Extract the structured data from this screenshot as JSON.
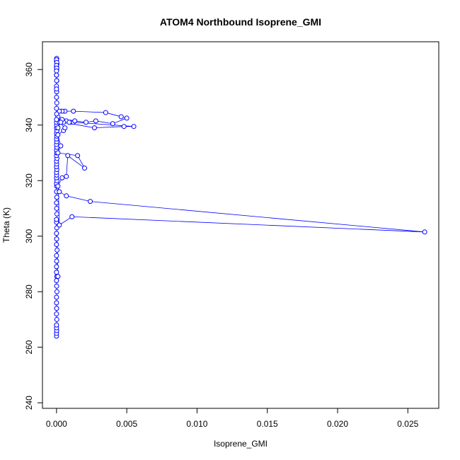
{
  "chart_data": {
    "type": "scatter",
    "title": "ATOM4 Northbound Isoprene_GMI",
    "xlabel": "Isoprene_GMI",
    "ylabel": "Theta (K)",
    "xlim": [
      -0.001,
      0.0272
    ],
    "ylim": [
      238,
      370
    ],
    "x_ticks": [
      0.0,
      0.005,
      0.01,
      0.015,
      0.02,
      0.025
    ],
    "x_tick_labels": [
      "0.000",
      "0.005",
      "0.010",
      "0.015",
      "0.020",
      "0.025"
    ],
    "y_ticks": [
      240,
      260,
      280,
      300,
      320,
      340,
      360
    ],
    "y_tick_labels": [
      "240",
      "260",
      "280",
      "300",
      "320",
      "340",
      "360"
    ],
    "grid": false,
    "legend": "none",
    "marker": "open-circle",
    "connected": true,
    "colors": {
      "series": "#0000ff",
      "axis": "#000000"
    },
    "series": [
      {
        "x": [
          0.0,
          0.0,
          1e-05,
          0.0,
          0.0,
          2e-05,
          0.0,
          1e-05,
          0.0,
          0.0,
          3e-05,
          1e-05,
          0.0,
          2e-05,
          0.0,
          0.0,
          1e-05,
          0.0,
          4e-05,
          0.0,
          1e-05,
          0.0,
          2e-05,
          0.0,
          0.0001,
          0.0,
          3e-05,
          1e-05,
          0.0,
          2e-05,
          0.0,
          1e-05,
          0.0,
          3e-05,
          0.0,
          1e-05,
          0.0,
          2e-05,
          0.0,
          1e-05,
          0.0,
          3e-05,
          0.0,
          1e-05,
          0.0,
          2e-05,
          0.0,
          1e-05,
          0.0,
          2e-05,
          0.0,
          3e-05,
          0.0,
          1e-05,
          0.0,
          0.0002,
          0.0011,
          0.0262,
          0.0024,
          0.0007,
          0.0002,
          0.0001,
          0.0004,
          0.0007,
          0.0008,
          0.002,
          0.0015,
          0.0001,
          0.0003,
          0.0001,
          0.0005,
          0.0006,
          0.0002,
          0.0007,
          0.001,
          0.0005,
          0.0027,
          0.0048,
          0.0055,
          0.0012,
          0.0004,
          0.0009,
          0.0013,
          0.0021,
          0.0028,
          0.004,
          0.005,
          0.0046,
          0.0035,
          0.0012,
          0.0006,
          0.0004,
          0.0002,
          0.0001,
          0.0003,
          0.0001,
          0.0,
          1e-05,
          0.0,
          2e-05,
          0.0,
          1e-05,
          0.0,
          2e-05,
          0.0,
          1e-05,
          0.0,
          3e-05,
          0.0,
          1e-05,
          0.0,
          2e-05,
          0.0,
          1e-05,
          0.0,
          0.0,
          1e-05,
          0.0
        ],
        "y": [
          264,
          265,
          266,
          267,
          268,
          270,
          272,
          274,
          276,
          278,
          280,
          282,
          284,
          285.5,
          287,
          289,
          291,
          293,
          295,
          297,
          299,
          301,
          303,
          305,
          285.5,
          306,
          308,
          310,
          312,
          314,
          316,
          318,
          319,
          320,
          321,
          322,
          323,
          324,
          325,
          326,
          327,
          328,
          329,
          330,
          331,
          332,
          333,
          334,
          335,
          336,
          337,
          338,
          339,
          340,
          341,
          304,
          307,
          301.5,
          312.5,
          314.5,
          316,
          318,
          321,
          321.5,
          329,
          324.5,
          329,
          330,
          332.5,
          336.5,
          338,
          339,
          341,
          341.5,
          341,
          341,
          339,
          339.5,
          339.5,
          341,
          342,
          341,
          341.5,
          341,
          341.5,
          340.5,
          342.5,
          343,
          344.5,
          345,
          345,
          345,
          345,
          343,
          341,
          339,
          342,
          344,
          346,
          348,
          350,
          352,
          354,
          356,
          358,
          360,
          361,
          362,
          363,
          364,
          363.5,
          362.5,
          361.5,
          360.5,
          359.5,
          358,
          356,
          353
        ]
      }
    ]
  }
}
